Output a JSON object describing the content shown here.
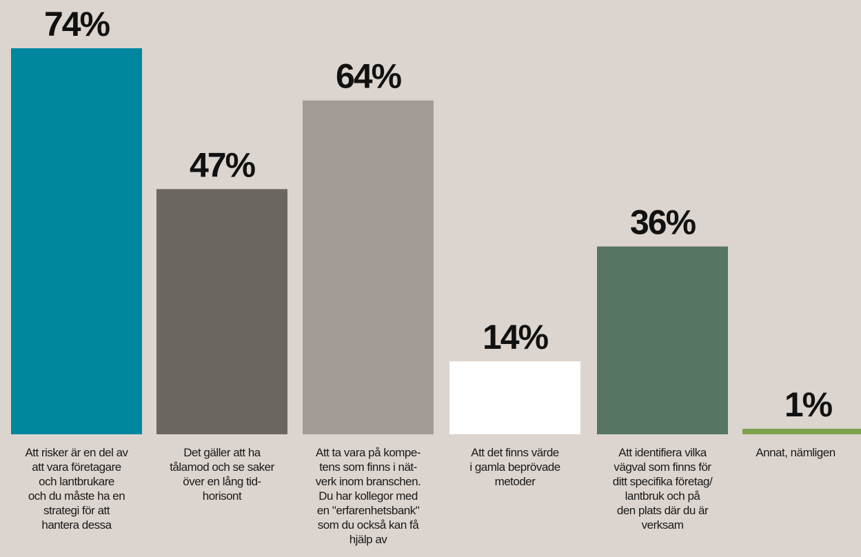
{
  "chart_data": {
    "type": "bar",
    "categories": [
      "Att risker är en del av\natt vara företagare\noch lantbrukare\noch du måste ha en\nstrategi för att\nhantera dessa",
      "Det gäller att ha\ntålamod och se saker\növer en lång tid-\nhorisont",
      "Att ta vara på kompe-\ntens som finns i nät-\nverk inom branschen.\nDu har kollegor med\nen \"erfarenhetsbank\"\nsom du också kan få\nhjälp av",
      "Att det finns värde\ni gamla beprövade\nmetoder",
      "Att identifiera vilka\nvägval som finns för\nditt specifika företag/\nlantbruk och på\nden plats där du är\nverksam",
      "Annat, nämligen"
    ],
    "values": [
      74,
      47,
      64,
      14,
      36,
      1
    ],
    "value_labels": [
      "74%",
      "47%",
      "64%",
      "14%",
      "36%",
      "1%"
    ],
    "colors": [
      "#00869f",
      "#6c6660",
      "#a39b96",
      "#ffffff",
      "#577563",
      "#7da24c"
    ],
    "ylim": [
      0,
      74
    ],
    "grid": false,
    "legend": "none",
    "background": "#dcd4ce"
  }
}
